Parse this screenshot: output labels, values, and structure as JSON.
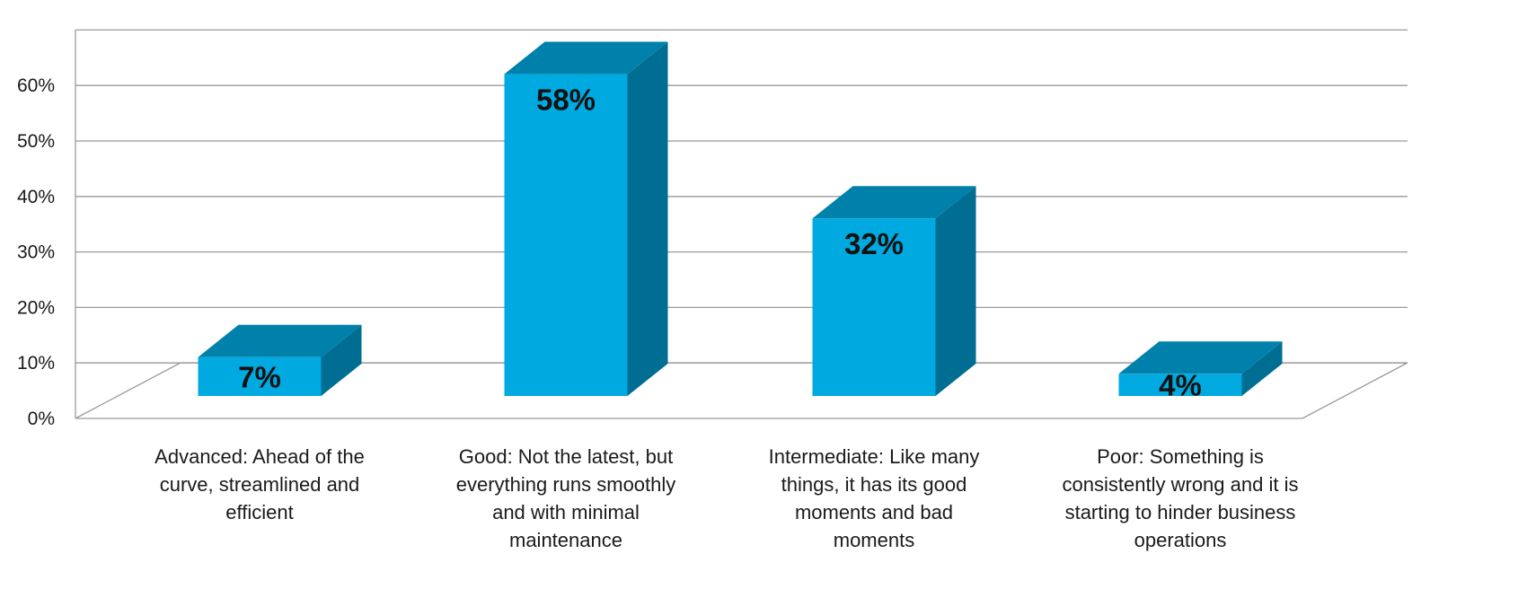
{
  "chart_data": {
    "type": "bar",
    "title": "",
    "xlabel": "",
    "ylabel": "",
    "ylim": [
      0,
      70
    ],
    "y_ticks": [
      "0%",
      "10%",
      "20%",
      "30%",
      "40%",
      "50%",
      "60%"
    ],
    "grid": true,
    "three_d": true,
    "categories": [
      "Advanced: Ahead of the curve, streamlined and efficient",
      "Good: Not the latest, but everything runs smoothly and with minimal maintenance",
      "Intermediate: Like many things, it has its good moments and bad moments",
      "Poor: Something is consistently wrong and it is starting to hinder business operations"
    ],
    "category_lines": [
      [
        "Advanced: Ahead of the",
        "curve, streamlined and",
        "efficient"
      ],
      [
        "Good: Not the latest, but",
        "everything runs smoothly",
        "and with minimal",
        "maintenance"
      ],
      [
        "Intermediate: Like many",
        "things, it has its good",
        "moments and bad",
        "moments"
      ],
      [
        "Poor: Something is",
        "consistently wrong and it is",
        "starting to hinder business",
        "operations"
      ]
    ],
    "values": [
      7,
      58,
      32,
      4
    ],
    "data_labels": [
      "7%",
      "58%",
      "32%",
      "4%"
    ],
    "colors": {
      "front": "#00A9E0",
      "top": "#0081AC",
      "side": "#006E93"
    }
  }
}
